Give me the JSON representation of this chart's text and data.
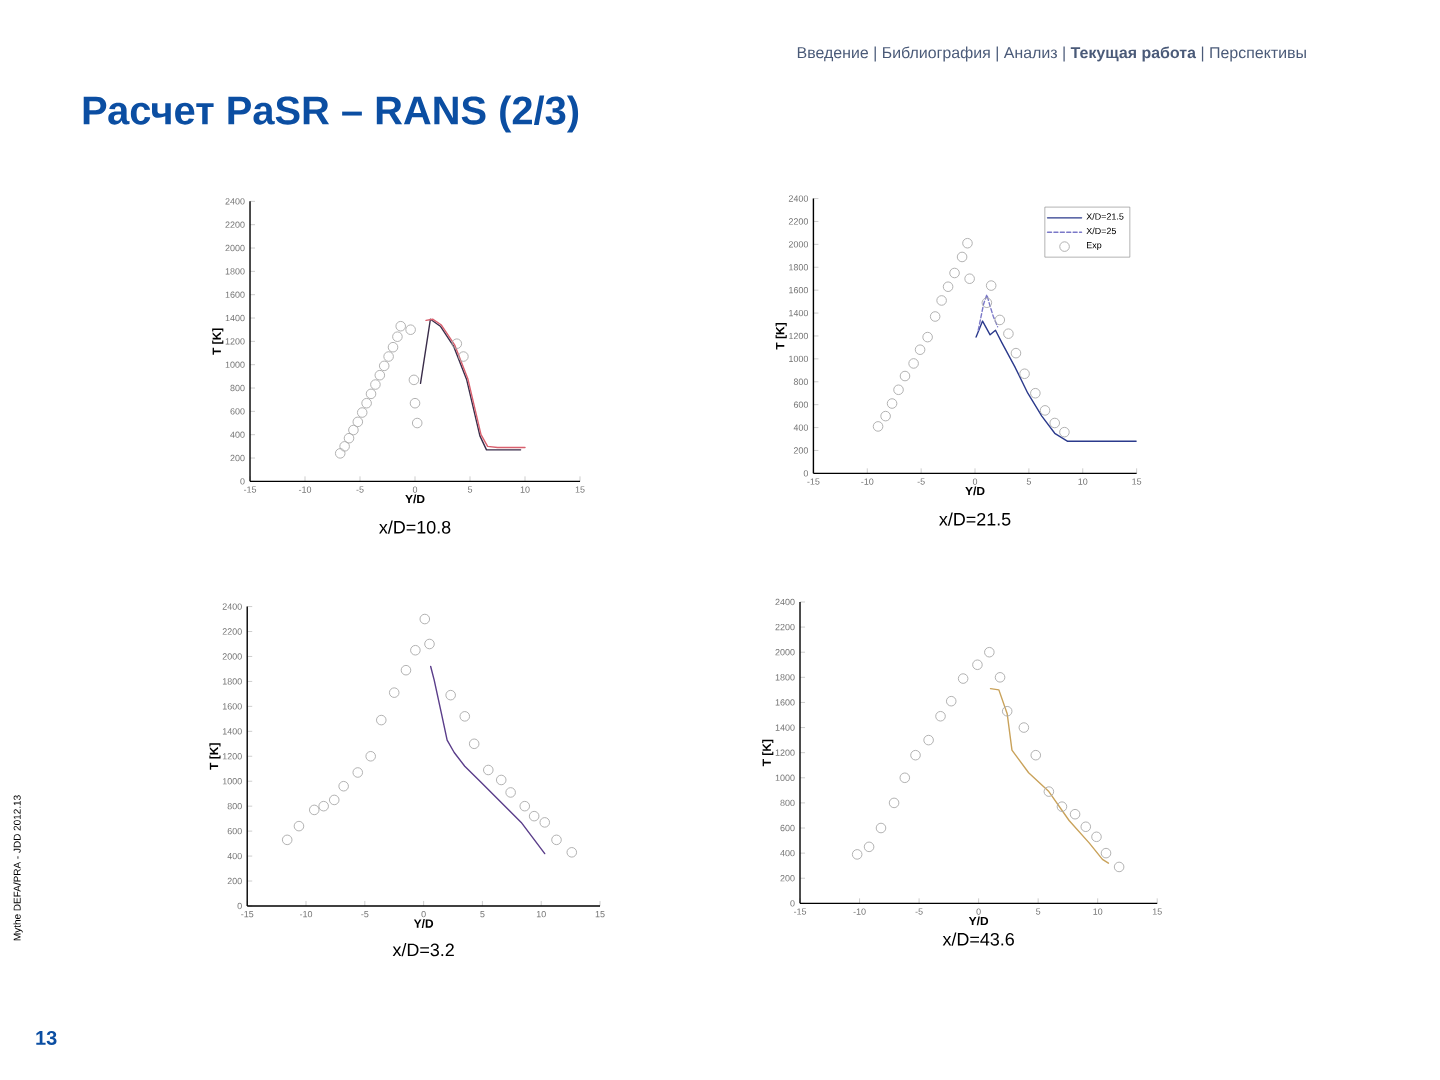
{
  "chart_data": [
    {
      "type": "other",
      "title": "Расчет PaSR – RANS (2/3)",
      "subtitle": "Введение | Библиография | Анализ | **Текущая работа** | Перспективы",
      "annotations": [
        "13",
        "Mythe DEFA/PRA - JDD 2012.13"
      ]
    },
    {
      "type": "line",
      "title": "x/D=10.8",
      "xlabel": "Y/D",
      "ylabel": "T [K]",
      "xlim": [
        -15,
        15
      ],
      "ylim": [
        0,
        2400
      ],
      "xticks": [
        -15,
        -10,
        -5,
        0,
        5,
        10,
        15
      ],
      "yticks": [
        0,
        200,
        400,
        600,
        800,
        1000,
        1200,
        1400,
        1600,
        1800,
        2000,
        2200,
        2400
      ],
      "series": [
        {
          "type": "line",
          "color": "#3a2d4a",
          "x": [
            0.5,
            1.4,
            2.3,
            3.5,
            4.7,
            5.9,
            6.5,
            7.5,
            9.6
          ],
          "values": [
            840,
            1390,
            1330,
            1160,
            870,
            390,
            270,
            270,
            270
          ]
        },
        {
          "type": "line",
          "color": "#d9606e",
          "x": [
            1.0,
            1.6,
            2.4,
            3.6,
            4.8,
            6.0,
            6.6,
            7.5,
            10.0
          ],
          "values": [
            1380,
            1390,
            1340,
            1170,
            880,
            400,
            300,
            290,
            290
          ]
        },
        {
          "type": "scatter",
          "marker": "circle",
          "color": "#a9a9a9",
          "x": [
            -6.8,
            -6.4,
            -6.0,
            -5.6,
            -5.2,
            -4.8,
            -4.4,
            -4.0,
            -3.6,
            -3.2,
            -2.8,
            -2.4,
            -2.0,
            -1.6,
            -1.3,
            -0.4,
            -0.1,
            0.0,
            0.2,
            3.8,
            4.4
          ],
          "values": [
            240,
            300,
            370,
            440,
            510,
            590,
            670,
            750,
            830,
            910,
            990,
            1070,
            1150,
            1240,
            1330,
            1300,
            870,
            670,
            500,
            1180,
            1070
          ]
        }
      ]
    },
    {
      "type": "line",
      "title": "x/D=21.5",
      "xlabel": "Y/D",
      "ylabel": "T [K]",
      "xlim": [
        -15,
        15
      ],
      "ylim": [
        0,
        2400
      ],
      "xticks": [
        -15,
        -10,
        -5,
        0,
        5,
        10,
        15
      ],
      "yticks": [
        0,
        200,
        400,
        600,
        800,
        1000,
        1200,
        1400,
        1600,
        1800,
        2000,
        2200,
        2400
      ],
      "legend": "top right",
      "series": [
        {
          "type": "line",
          "name": "X/D=21.5",
          "color": "#2b3a8c",
          "x": [
            0.1,
            0.7,
            1.4,
            1.9,
            2.5,
            3.7,
            4.9,
            6.2,
            7.4,
            8.6,
            9.3,
            15
          ],
          "values": [
            1190,
            1330,
            1210,
            1250,
            1140,
            930,
            700,
            500,
            350,
            280,
            280,
            280
          ]
        },
        {
          "type": "line",
          "name": "X/D=25",
          "line_style": "dashed",
          "color": "#7a78c8",
          "x": [
            0.3,
            0.8,
            1.1,
            1.4,
            1.7,
            2.1
          ],
          "values": [
            1250,
            1480,
            1560,
            1460,
            1370,
            1280
          ]
        },
        {
          "type": "scatter",
          "name": "Exp",
          "marker": "circle",
          "color": "#a9a9a9",
          "x": [
            -9.0,
            -8.3,
            -7.7,
            -7.1,
            -6.5,
            -5.7,
            -5.1,
            -4.4,
            -3.7,
            -3.1,
            -2.5,
            -1.9,
            -1.2,
            -0.7,
            -0.5,
            1.5,
            1.1,
            2.3,
            3.1,
            3.8,
            4.6,
            5.6,
            6.5,
            7.4,
            8.3
          ],
          "values": [
            410,
            500,
            610,
            730,
            850,
            960,
            1080,
            1190,
            1370,
            1510,
            1630,
            1750,
            1890,
            2010,
            1700,
            1640,
            1490,
            1340,
            1220,
            1050,
            870,
            700,
            550,
            440,
            360
          ]
        }
      ]
    },
    {
      "type": "line",
      "title": "x/D=3.2",
      "xlabel": "Y/D",
      "ylabel": "T [K]",
      "xlim": [
        -15,
        15
      ],
      "ylim": [
        0,
        2400
      ],
      "xticks": [
        -15,
        -10,
        -5,
        0,
        5,
        10,
        15
      ],
      "yticks": [
        0,
        200,
        400,
        600,
        800,
        1000,
        1200,
        1400,
        1600,
        1800,
        2000,
        2200,
        2400
      ],
      "series": [
        {
          "type": "line",
          "color": "#5a3d8a",
          "x": [
            0.6,
            0.9,
            1.5,
            2.0,
            2.6,
            3.5,
            4.9,
            6.6,
            8.3,
            10.3
          ],
          "values": [
            1920,
            1810,
            1550,
            1330,
            1230,
            1120,
            990,
            830,
            670,
            420
          ]
        },
        {
          "type": "scatter",
          "marker": "circle",
          "color": "#a9a9a9",
          "x": [
            -11.6,
            -10.6,
            -9.3,
            -8.5,
            -7.6,
            -6.8,
            -5.6,
            -4.5,
            -3.6,
            -2.5,
            -1.5,
            -0.7,
            0.1,
            0.5,
            2.3,
            3.5,
            4.3,
            5.5,
            6.6,
            7.4,
            8.6,
            9.4,
            10.3,
            11.3,
            12.6
          ],
          "values": [
            530,
            640,
            770,
            800,
            850,
            960,
            1070,
            1200,
            1490,
            1710,
            1890,
            2050,
            2300,
            2100,
            1690,
            1520,
            1300,
            1090,
            1010,
            910,
            800,
            720,
            670,
            530,
            430
          ]
        }
      ]
    },
    {
      "type": "line",
      "title": "x/D=43.6",
      "xlabel": "Y/D",
      "ylabel": "T [K]",
      "xlim": [
        -15,
        15
      ],
      "ylim": [
        0,
        2400
      ],
      "xticks": [
        -15,
        -10,
        -5,
        0,
        5,
        10,
        15
      ],
      "yticks": [
        0,
        200,
        400,
        600,
        800,
        1000,
        1200,
        1400,
        1600,
        1800,
        2000,
        2200,
        2400
      ],
      "series": [
        {
          "type": "line",
          "color": "#c9a25a",
          "x": [
            1.0,
            1.7,
            2.4,
            2.8,
            4.2,
            5.9,
            7.6,
            9.3,
            10.4,
            10.9
          ],
          "values": [
            1710,
            1700,
            1510,
            1220,
            1040,
            890,
            660,
            480,
            350,
            320
          ]
        },
        {
          "type": "scatter",
          "marker": "circle",
          "color": "#a9a9a9",
          "x": [
            -10.2,
            -9.2,
            -8.2,
            -7.1,
            -6.2,
            -5.3,
            -4.2,
            -3.2,
            -2.3,
            -1.3,
            -0.1,
            0.9,
            1.8,
            2.4,
            3.8,
            4.8,
            5.9,
            7.0,
            8.1,
            9.0,
            9.9,
            10.7,
            11.8
          ],
          "values": [
            390,
            450,
            600,
            800,
            1000,
            1180,
            1300,
            1490,
            1610,
            1790,
            1900,
            2000,
            1800,
            1530,
            1400,
            1180,
            890,
            770,
            710,
            610,
            530,
            400,
            290
          ]
        }
      ]
    }
  ]
}
